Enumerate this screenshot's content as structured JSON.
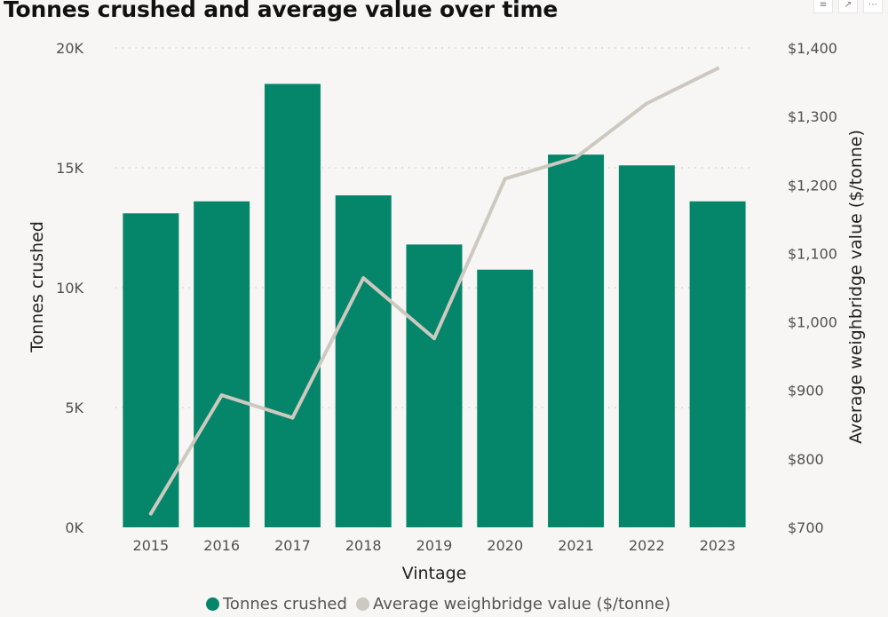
{
  "header": {
    "title": "Tonnes crushed and average value over time",
    "icons": [
      "filter-icon",
      "focus-mode-icon",
      "more-options-icon"
    ]
  },
  "chart_data": {
    "type": "bar",
    "title": "Tonnes crushed and average value over time",
    "xlabel": "Vintage",
    "ylabel": "Tonnes crushed",
    "y2label": "Average weighbridge value ($/tonne)",
    "categories": [
      "2015",
      "2016",
      "2017",
      "2018",
      "2019",
      "2020",
      "2021",
      "2022",
      "2023"
    ],
    "ylim": [
      0,
      20000
    ],
    "y2lim": [
      700,
      1400
    ],
    "yticks": [
      0,
      5000,
      10000,
      15000,
      20000
    ],
    "ytick_labels": [
      "0K",
      "5K",
      "10K",
      "15K",
      "20K"
    ],
    "y2ticks": [
      700,
      800,
      900,
      1000,
      1100,
      1200,
      1300,
      1400
    ],
    "y2tick_labels": [
      "$700",
      "$800",
      "$900",
      "$1,000",
      "$1,100",
      "$1,200",
      "$1,300",
      "$1,400"
    ],
    "grid": true,
    "legend_position": "bottom",
    "series": [
      {
        "name": "Tonnes crushed",
        "type": "bar",
        "axis": "left",
        "color": "#05866a",
        "values": [
          13100,
          13600,
          18500,
          13850,
          11800,
          10750,
          15550,
          15100,
          13600
        ]
      },
      {
        "name": "Average weighbridge value ($/tonne)",
        "type": "line",
        "axis": "right",
        "color": "#cdc9c0",
        "values": [
          720,
          893,
          860,
          1064,
          976,
          1209,
          1240,
          1319,
          1370
        ]
      }
    ]
  }
}
